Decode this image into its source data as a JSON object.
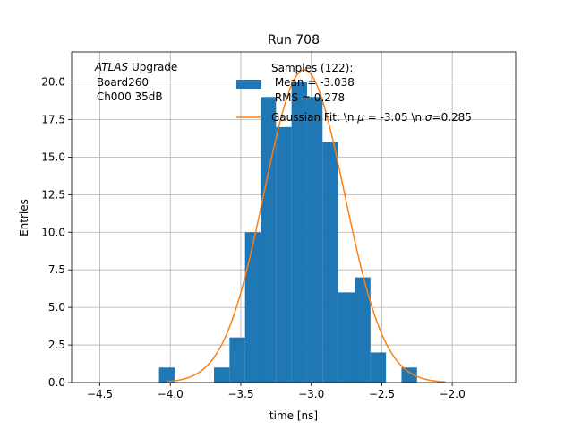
{
  "chart_data": {
    "type": "bar",
    "title": "Run 708",
    "xlabel": "time [ns]",
    "ylabel": "Entries",
    "xlim": [
      -4.7,
      -1.55
    ],
    "ylim": [
      0,
      22
    ],
    "grid": true,
    "legend_position": "top-center",
    "xticks": [
      -4.5,
      -4.0,
      -3.5,
      -3.0,
      -2.5,
      -2.0
    ],
    "xtick_labels": [
      "−4.5",
      "−4.0",
      "−3.5",
      "−3.0",
      "−2.5",
      "−2.0"
    ],
    "yticks": [
      0.0,
      2.5,
      5.0,
      7.5,
      10.0,
      12.5,
      15.0,
      17.5,
      20.0
    ],
    "ytick_labels": [
      "0.0",
      "2.5",
      "5.0",
      "7.5",
      "10.0",
      "12.5",
      "15.0",
      "17.5",
      "20.0"
    ],
    "annotation": {
      "italic": "ATLAS",
      "rest": " Upgrade",
      "line2": " Board260",
      "line3": " Ch000 35dB"
    },
    "histogram": {
      "name": "Samples (122):",
      "color": "#1f77b4",
      "bins": [
        {
          "x0": -4.08,
          "x1": -3.97,
          "count": 1
        },
        {
          "x0": -3.97,
          "x1": -3.86,
          "count": 0
        },
        {
          "x0": -3.86,
          "x1": -3.69,
          "count": 0
        },
        {
          "x0": -3.69,
          "x1": -3.58,
          "count": 1
        },
        {
          "x0": -3.58,
          "x1": -3.47,
          "count": 3
        },
        {
          "x0": -3.47,
          "x1": -3.36,
          "count": 10
        },
        {
          "x0": -3.36,
          "x1": -3.25,
          "count": 19
        },
        {
          "x0": -3.25,
          "x1": -3.14,
          "count": 17
        },
        {
          "x0": -3.14,
          "x1": -3.03,
          "count": 20
        },
        {
          "x0": -3.03,
          "x1": -2.92,
          "count": 19
        },
        {
          "x0": -2.92,
          "x1": -2.81,
          "count": 16
        },
        {
          "x0": -2.81,
          "x1": -2.69,
          "count": 6
        },
        {
          "x0": -2.69,
          "x1": -2.58,
          "count": 7
        },
        {
          "x0": -2.58,
          "x1": -2.47,
          "count": 2
        },
        {
          "x0": -2.47,
          "x1": -2.36,
          "count": 0
        },
        {
          "x0": -2.36,
          "x1": -2.25,
          "count": 1
        }
      ]
    },
    "fit": {
      "name": "Gaussian Fit: \\n $\\mu$ = -3.05 \\n $\\sigma$=0.285",
      "color": "#ff7f0e",
      "mu": -3.05,
      "sigma": 0.285,
      "amplitude": 20.8,
      "x_range": [
        -4.02,
        -2.05
      ]
    },
    "legend": {
      "samples_title": "Samples (122):",
      "samples_mean": " Mean = -3.038",
      "samples_rms": " RMS = 0.278",
      "fit_label_prefix": "Gaussian Fit: \\n ",
      "fit_mu_symbol": "μ",
      "fit_label_mid": " = -3.05 \\n ",
      "fit_sigma_symbol": "σ",
      "fit_label_end": "=0.285"
    }
  }
}
